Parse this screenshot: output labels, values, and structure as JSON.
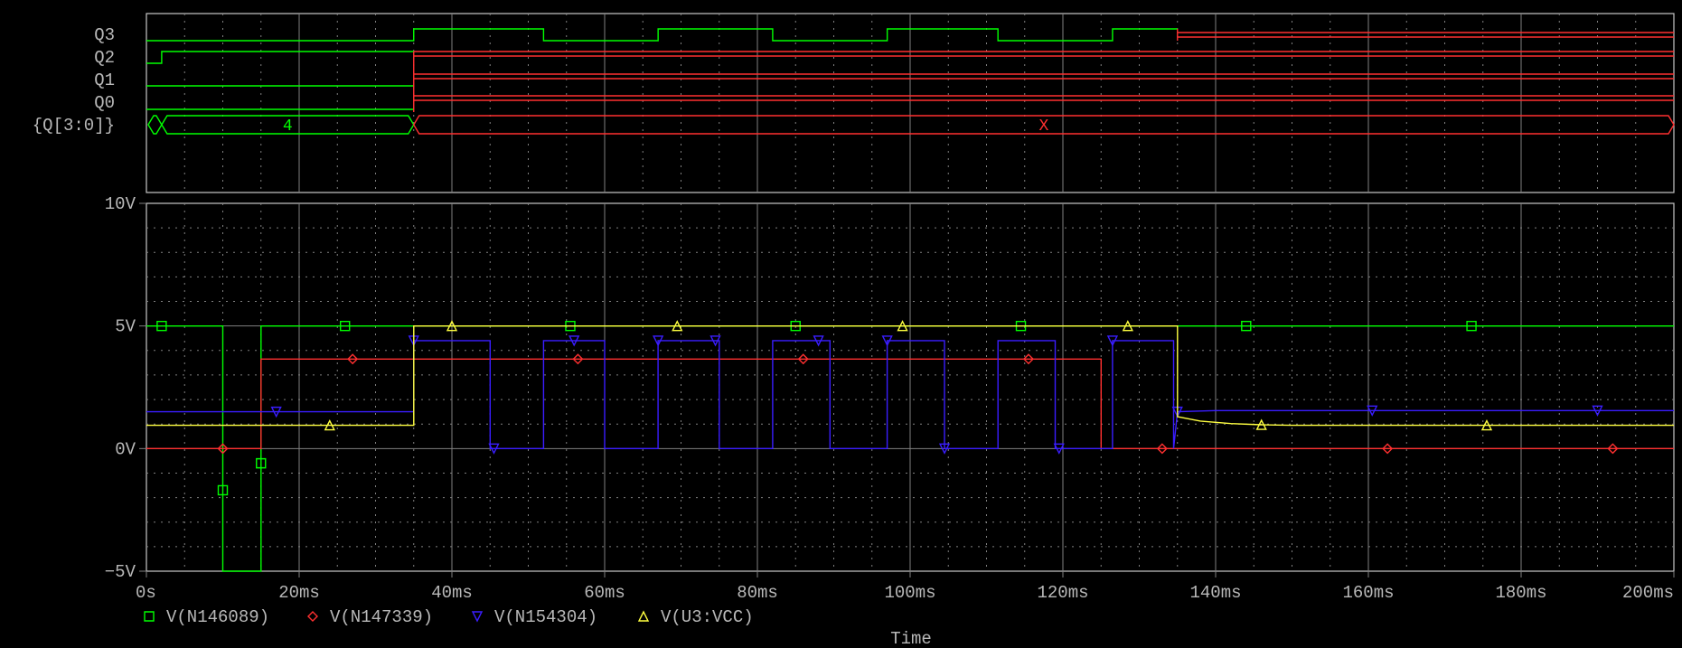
{
  "colors": {
    "background": "#000000",
    "axis": "#c8c8c8",
    "grid": "#808080",
    "text": "#b8b8b8",
    "green": "#00ff00",
    "red": "#ff3030",
    "blue": "#3a1dff",
    "yellow": "#ffff40"
  },
  "digital_panel": {
    "signals": [
      "Q3",
      "Q2",
      "Q1",
      "Q0"
    ],
    "bus_label": "{Q[3:0]}",
    "bus_values": [
      {
        "t_start": 0,
        "t_end": 35,
        "value": "4",
        "state": "valid"
      },
      {
        "t_start": 35,
        "t_end": 200,
        "value": "X",
        "state": "unknown"
      }
    ]
  },
  "chart_data": {
    "type": "line",
    "title": "",
    "xlabel": "Time",
    "ylabel": "",
    "xlim": [
      0,
      200
    ],
    "ylim": [
      -5,
      10
    ],
    "x_unit": "ms",
    "x_ticks": [
      {
        "v": 0,
        "label": "0s"
      },
      {
        "v": 20,
        "label": "20ms"
      },
      {
        "v": 40,
        "label": "40ms"
      },
      {
        "v": 60,
        "label": "60ms"
      },
      {
        "v": 80,
        "label": "80ms"
      },
      {
        "v": 100,
        "label": "100ms"
      },
      {
        "v": 120,
        "label": "120ms"
      },
      {
        "v": 140,
        "label": "140ms"
      },
      {
        "v": 160,
        "label": "160ms"
      },
      {
        "v": 180,
        "label": "180ms"
      },
      {
        "v": 200,
        "label": "200ms"
      }
    ],
    "y_ticks": [
      {
        "v": 10,
        "label": "10V"
      },
      {
        "v": 5,
        "label": "5V"
      },
      {
        "v": 0,
        "label": "0V"
      },
      {
        "v": -5,
        "label": "−5V"
      }
    ],
    "grid": true,
    "legend_position": "bottom-left",
    "series": [
      {
        "name": "V(N146089)",
        "color": "#00ff00",
        "marker": "square",
        "x": [
          0,
          10,
          10,
          15,
          15,
          200
        ],
        "y": [
          5,
          5,
          -5,
          -5,
          5,
          5
        ]
      },
      {
        "name": "V(N147339)",
        "color": "#ff3030",
        "marker": "diamond",
        "x": [
          0,
          15,
          15,
          125,
          125,
          200
        ],
        "y": [
          0,
          0,
          3.65,
          3.65,
          0,
          0
        ]
      },
      {
        "name": "V(N154304)",
        "color": "#3a1dff",
        "marker": "triangle-down",
        "x": [
          0,
          35,
          35,
          45,
          45,
          52,
          52,
          60,
          60,
          67,
          67,
          75,
          75,
          82,
          82,
          89.5,
          89.5,
          97,
          97,
          104.5,
          104.5,
          111.5,
          111.5,
          119,
          119,
          126.5,
          126.5,
          134.5,
          134.5,
          135,
          140,
          160,
          200
        ],
        "y": [
          1.5,
          1.5,
          4.4,
          4.4,
          0,
          0,
          4.4,
          4.4,
          0,
          0,
          4.4,
          4.4,
          0,
          0,
          4.4,
          4.4,
          0,
          0,
          4.4,
          4.4,
          0,
          0,
          4.4,
          4.4,
          0,
          0,
          4.4,
          4.4,
          0,
          1.5,
          1.55,
          1.55,
          1.55
        ]
      },
      {
        "name": "V(U3:VCC)",
        "color": "#ffff40",
        "marker": "triangle-up",
        "x": [
          0,
          35,
          35,
          135,
          135,
          138,
          142,
          146,
          150,
          200
        ],
        "y": [
          0.95,
          0.95,
          5,
          5,
          1.3,
          1.12,
          1.02,
          0.97,
          0.95,
          0.95
        ]
      }
    ]
  }
}
